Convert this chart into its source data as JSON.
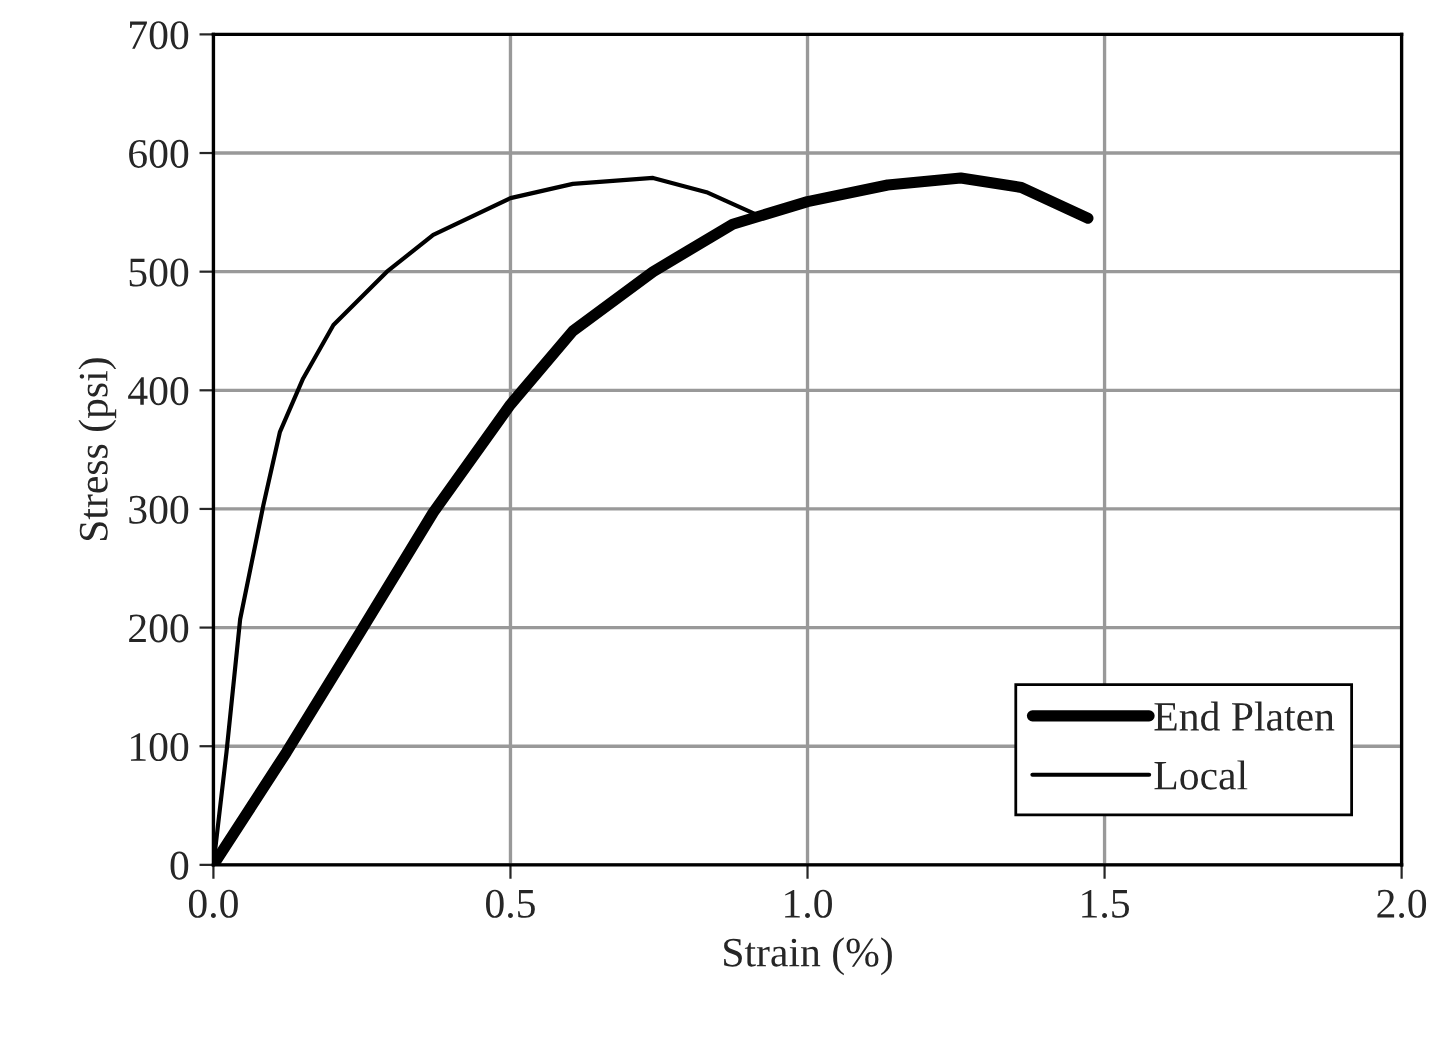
{
  "chart_data": {
    "type": "line",
    "xlabel": "Strain (%)",
    "ylabel": "Stress (psi)",
    "xlim": [
      0,
      2
    ],
    "xticks": [
      {
        "value": 0,
        "label": "0.0"
      },
      {
        "value": 0.5,
        "label": "0.5"
      },
      {
        "value": 1,
        "label": "1.0"
      },
      {
        "value": 1.5,
        "label": "1.5"
      },
      {
        "value": 2,
        "label": "2.0"
      }
    ],
    "ylim": [
      0,
      700
    ],
    "yticks": [
      0,
      100,
      200,
      300,
      400,
      500,
      600,
      700
    ],
    "grid": true,
    "legend": "bottom right",
    "marker": "none",
    "line_style": "solid",
    "series": [
      {
        "name": "End Platen",
        "color": "#000000",
        "x": [
          0,
          0.123,
          0.247,
          0.37,
          0.5,
          0.605,
          0.74,
          0.874,
          1.0,
          1.135,
          1.258,
          1.36,
          1.472
        ],
        "values": [
          0,
          95,
          196,
          297,
          388,
          450,
          500,
          540,
          559,
          573,
          579,
          571,
          545
        ]
      },
      {
        "name": "Local",
        "color": "#000000",
        "x": [
          0,
          0.022,
          0.045,
          0.084,
          0.112,
          0.151,
          0.202,
          0.292,
          0.37,
          0.5,
          0.605,
          0.74,
          0.83,
          0.914
        ],
        "values": [
          0,
          95,
          207,
          303,
          365,
          410,
          455,
          500,
          531,
          562,
          574,
          579,
          567,
          548
        ]
      }
    ]
  }
}
